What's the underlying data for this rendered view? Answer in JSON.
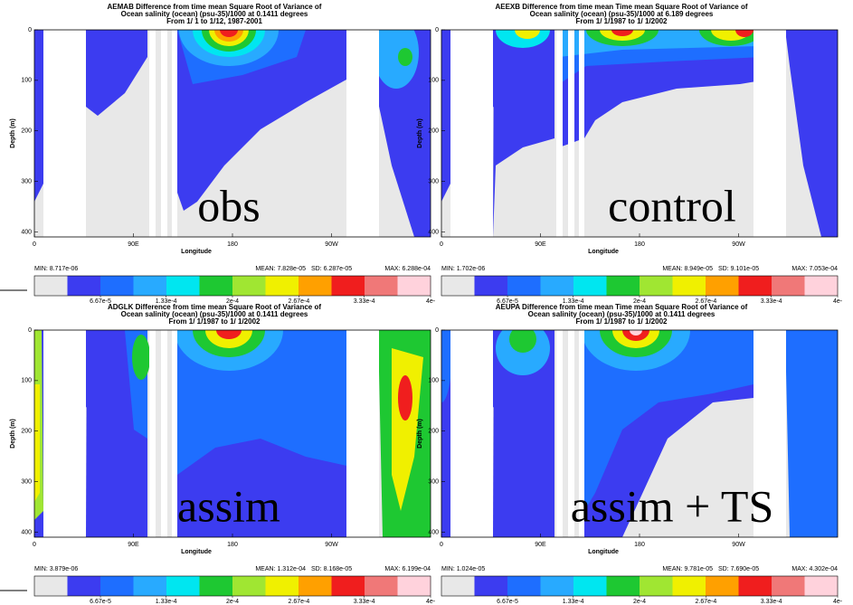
{
  "chart_data": [
    {
      "type": "contour",
      "title": [
        "AEMAB Difference from time mean Square Root of Variance of",
        "Ocean salinity (ocean) (psu-35)/1000 at 0.1411 degrees",
        "From 1/ 1 to 1/12, 1987-2001"
      ],
      "xlabel": "Longitude",
      "ylabel": "Depth (m)",
      "xlim": [
        0,
        360
      ],
      "xticks": [
        0,
        {
          "value": 90,
          "label": "90E"
        },
        180,
        {
          "value": 270,
          "label": "90W"
        }
      ],
      "ylim": [
        0,
        410
      ],
      "yticks": [
        0,
        100,
        200,
        300,
        400
      ],
      "stats": {
        "min": "MIN: 8.717e-06",
        "mean": "MEAN: 7.828e-05",
        "sd": "SD: 6.287e-05",
        "max": "MAX: 6.288e-04"
      },
      "clim": [
        0,
        0.0004
      ],
      "cticks": [
        {
          "value": 6.67e-05,
          "label": "6.67e-5"
        },
        {
          "value": 0.000133,
          "label": "1.33e-4"
        },
        {
          "value": 0.0002,
          "label": "2e-4"
        },
        {
          "value": 0.000267,
          "label": "2.67e-4"
        },
        {
          "value": 0.000333,
          "label": "3.33e-4"
        },
        {
          "value": 0.0004,
          "label": "4e-"
        }
      ],
      "colors": [
        "#e8e8e8",
        "#3c3cf0",
        "#1e6eff",
        "#28aaff",
        "#00e6f0",
        "#1ec832",
        "#a0e632",
        "#f0f000",
        "#ffa000",
        "#f01e1e",
        "#f07878",
        "#ffd2dc"
      ],
      "annotation": "obs"
    },
    {
      "type": "contour",
      "title": [
        "AEEXB Difference from time mean Time mean Square Root of Variance of",
        "Ocean salinity (ocean) (psu-35)/1000 at 6.189 degrees",
        "From 1/ 1/1987 to 1/ 1/2002"
      ],
      "xlabel": "Longitude",
      "ylabel": "Depth (m)",
      "xlim": [
        0,
        360
      ],
      "xticks": [
        0,
        {
          "value": 90,
          "label": "90E"
        },
        180,
        {
          "value": 270,
          "label": "90W"
        }
      ],
      "ylim": [
        0,
        410
      ],
      "yticks": [
        0,
        100,
        200,
        300,
        400
      ],
      "stats": {
        "min": "MIN: 1.702e-06",
        "mean": "MEAN: 8.949e-05",
        "sd": "SD: 9.101e-05",
        "max": "MAX: 7.053e-04"
      },
      "clim": [
        0,
        0.0004
      ],
      "cticks": [
        {
          "value": 6.67e-05,
          "label": "6.67e-5"
        },
        {
          "value": 0.000133,
          "label": "1.33e-4"
        },
        {
          "value": 0.0002,
          "label": "2e-4"
        },
        {
          "value": 0.000267,
          "label": "2.67e-4"
        },
        {
          "value": 0.000333,
          "label": "3.33e-4"
        },
        {
          "value": 0.0004,
          "label": "4e-"
        }
      ],
      "colors": [
        "#e8e8e8",
        "#3c3cf0",
        "#1e6eff",
        "#28aaff",
        "#00e6f0",
        "#1ec832",
        "#a0e632",
        "#f0f000",
        "#ffa000",
        "#f01e1e",
        "#f07878",
        "#ffd2dc"
      ],
      "annotation": "control"
    },
    {
      "type": "contour",
      "title": [
        "ADGLK Difference from time mean Square Root of Variance of",
        "Ocean salinity (ocean) (psu-35)/1000 at 0.1411 degrees",
        "From 1/ 1/1987 to 1/ 1/2002"
      ],
      "xlabel": "Longitude",
      "ylabel": "Depth (m)",
      "xlim": [
        0,
        360
      ],
      "xticks": [
        0,
        {
          "value": 90,
          "label": "90E"
        },
        180,
        {
          "value": 270,
          "label": "90W"
        }
      ],
      "ylim": [
        0,
        410
      ],
      "yticks": [
        0,
        100,
        200,
        300,
        400
      ],
      "stats": {
        "min": "MIN: 3.879e-06",
        "mean": "MEAN: 1.312e-04",
        "sd": "SD: 8.168e-05",
        "max": "MAX: 6.199e-04"
      },
      "clim": [
        0,
        0.0004
      ],
      "cticks": [
        {
          "value": 6.67e-05,
          "label": "6.67e-5"
        },
        {
          "value": 0.000133,
          "label": "1.33e-4"
        },
        {
          "value": 0.0002,
          "label": "2e-4"
        },
        {
          "value": 0.000267,
          "label": "2.67e-4"
        },
        {
          "value": 0.000333,
          "label": "3.33e-4"
        },
        {
          "value": 0.0004,
          "label": "4e-"
        }
      ],
      "colors": [
        "#e8e8e8",
        "#3c3cf0",
        "#1e6eff",
        "#28aaff",
        "#00e6f0",
        "#1ec832",
        "#a0e632",
        "#f0f000",
        "#ffa000",
        "#f01e1e",
        "#f07878",
        "#ffd2dc"
      ],
      "annotation": "assim"
    },
    {
      "type": "contour",
      "title": [
        "AEUPA Difference from time mean Time mean Square Root of Variance of",
        "Ocean salinity (ocean) (psu-35)/1000 at 0.1411 degrees",
        "From 1/ 1/1987 to 1/ 1/2002"
      ],
      "xlabel": "Longitude",
      "ylabel": "Depth (m)",
      "xlim": [
        0,
        360
      ],
      "xticks": [
        0,
        {
          "value": 90,
          "label": "90E"
        },
        180,
        {
          "value": 270,
          "label": "90W"
        }
      ],
      "ylim": [
        0,
        410
      ],
      "yticks": [
        0,
        100,
        200,
        300,
        400
      ],
      "stats": {
        "min": "MIN: 1.024e-05",
        "mean": "MEAN: 9.781e-05",
        "sd": "SD: 7.690e-05",
        "max": "MAX: 4.302e-04"
      },
      "clim": [
        0,
        0.0004
      ],
      "cticks": [
        {
          "value": 6.67e-05,
          "label": "6.67e-5"
        },
        {
          "value": 0.000133,
          "label": "1.33e-4"
        },
        {
          "value": 0.0002,
          "label": "2e-4"
        },
        {
          "value": 0.000267,
          "label": "2.67e-4"
        },
        {
          "value": 0.000333,
          "label": "3.33e-4"
        },
        {
          "value": 0.0004,
          "label": "4e-"
        }
      ],
      "colors": [
        "#e8e8e8",
        "#3c3cf0",
        "#1e6eff",
        "#28aaff",
        "#00e6f0",
        "#1ec832",
        "#a0e632",
        "#f0f000",
        "#ffa000",
        "#f01e1e",
        "#f07878",
        "#ffd2dc"
      ],
      "annotation": "assim + TS"
    }
  ]
}
